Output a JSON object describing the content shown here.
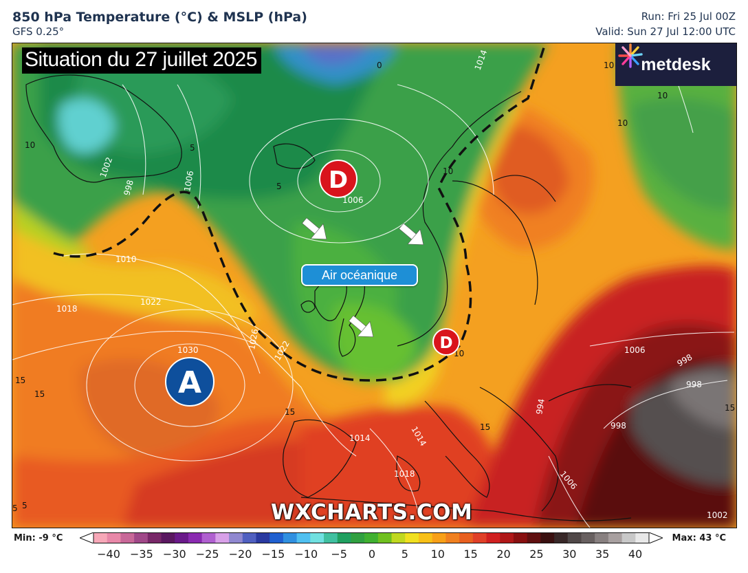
{
  "header": {
    "title": "850 hPa Temperature (°C) & MSLP (hPa)",
    "model": "GFS 0.25°",
    "run": "Run: Fri 25 Jul 00Z",
    "valid": "Valid: Sun 27 Jul 12:00 UTC"
  },
  "map": {
    "banner": "Situation du 27 juillet 2025",
    "logo_text": "metdesk",
    "logo_icon": "metdesk-burst-icon",
    "air_label": "Air océanique",
    "watermark": "WXCHARTS.COM",
    "high_label": "A",
    "low_label": "D",
    "high_color": "#0e4f9c",
    "low_color": "#d9141c",
    "arrow_icon": "white-arrow-icon",
    "isobar_labels": [
      "1002",
      "998",
      "1006",
      "1010",
      "1018",
      "1022",
      "1030",
      "1026",
      "1022",
      "1006",
      "1014",
      "1014",
      "1014",
      "1018",
      "1006",
      "1006",
      "998",
      "998",
      "994",
      "998",
      "1002",
      "10",
      "10",
      "10",
      "10",
      "5",
      "5",
      "0",
      "5",
      "15",
      "15",
      "15",
      "15",
      "15",
      "10",
      "10",
      "5"
    ]
  },
  "legend": {
    "min_label": "Min: -9 °C",
    "max_label": "Max: 43 °C",
    "ticks": [
      "−40",
      "−35",
      "−30",
      "−25",
      "−20",
      "−15",
      "−10",
      "−5",
      "0",
      "5",
      "10",
      "15",
      "20",
      "25",
      "30",
      "35",
      "40"
    ],
    "colors": [
      "#f7a8b8",
      "#e888a8",
      "#c86898",
      "#a04888",
      "#782868",
      "#5a1860",
      "#6a1a8a",
      "#8a2ab0",
      "#b060d0",
      "#d8a0e8",
      "#9088d0",
      "#5060c0",
      "#2a3aa0",
      "#2060d0",
      "#3090e0",
      "#50c0f0",
      "#70e0e0",
      "#40c0a0",
      "#20a060",
      "#30a040",
      "#40b030",
      "#70c020",
      "#c0d820",
      "#f0e020",
      "#f8c018",
      "#f8a018",
      "#f08020",
      "#e86020",
      "#e04028",
      "#d02020",
      "#b01818",
      "#881010",
      "#601010",
      "#3a1010",
      "#382828",
      "#504848",
      "#686060",
      "#888080",
      "#a8a0a0",
      "#c8c8c8",
      "#e8e8e8"
    ]
  }
}
